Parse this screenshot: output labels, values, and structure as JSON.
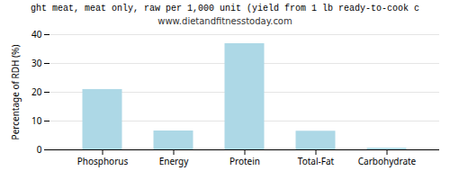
{
  "chart_data": {
    "type": "bar",
    "title": "ght meat, meat only, raw per 1,000 unit (yield from 1 lb ready-to-cook c",
    "subtitle": "www.dietandfitnesstoday.com",
    "categories": [
      "Phosphorus",
      "Energy",
      "Protein",
      "Total-Fat",
      "Carbohydrate"
    ],
    "values": [
      20.8,
      6.4,
      36.7,
      6.3,
      0.4
    ],
    "color": "#add8e6",
    "ylabel": "Percentage of RDH (%)",
    "ylim": [
      0,
      40
    ],
    "yticks": [
      0,
      10,
      20,
      30,
      40
    ],
    "grid": true
  }
}
